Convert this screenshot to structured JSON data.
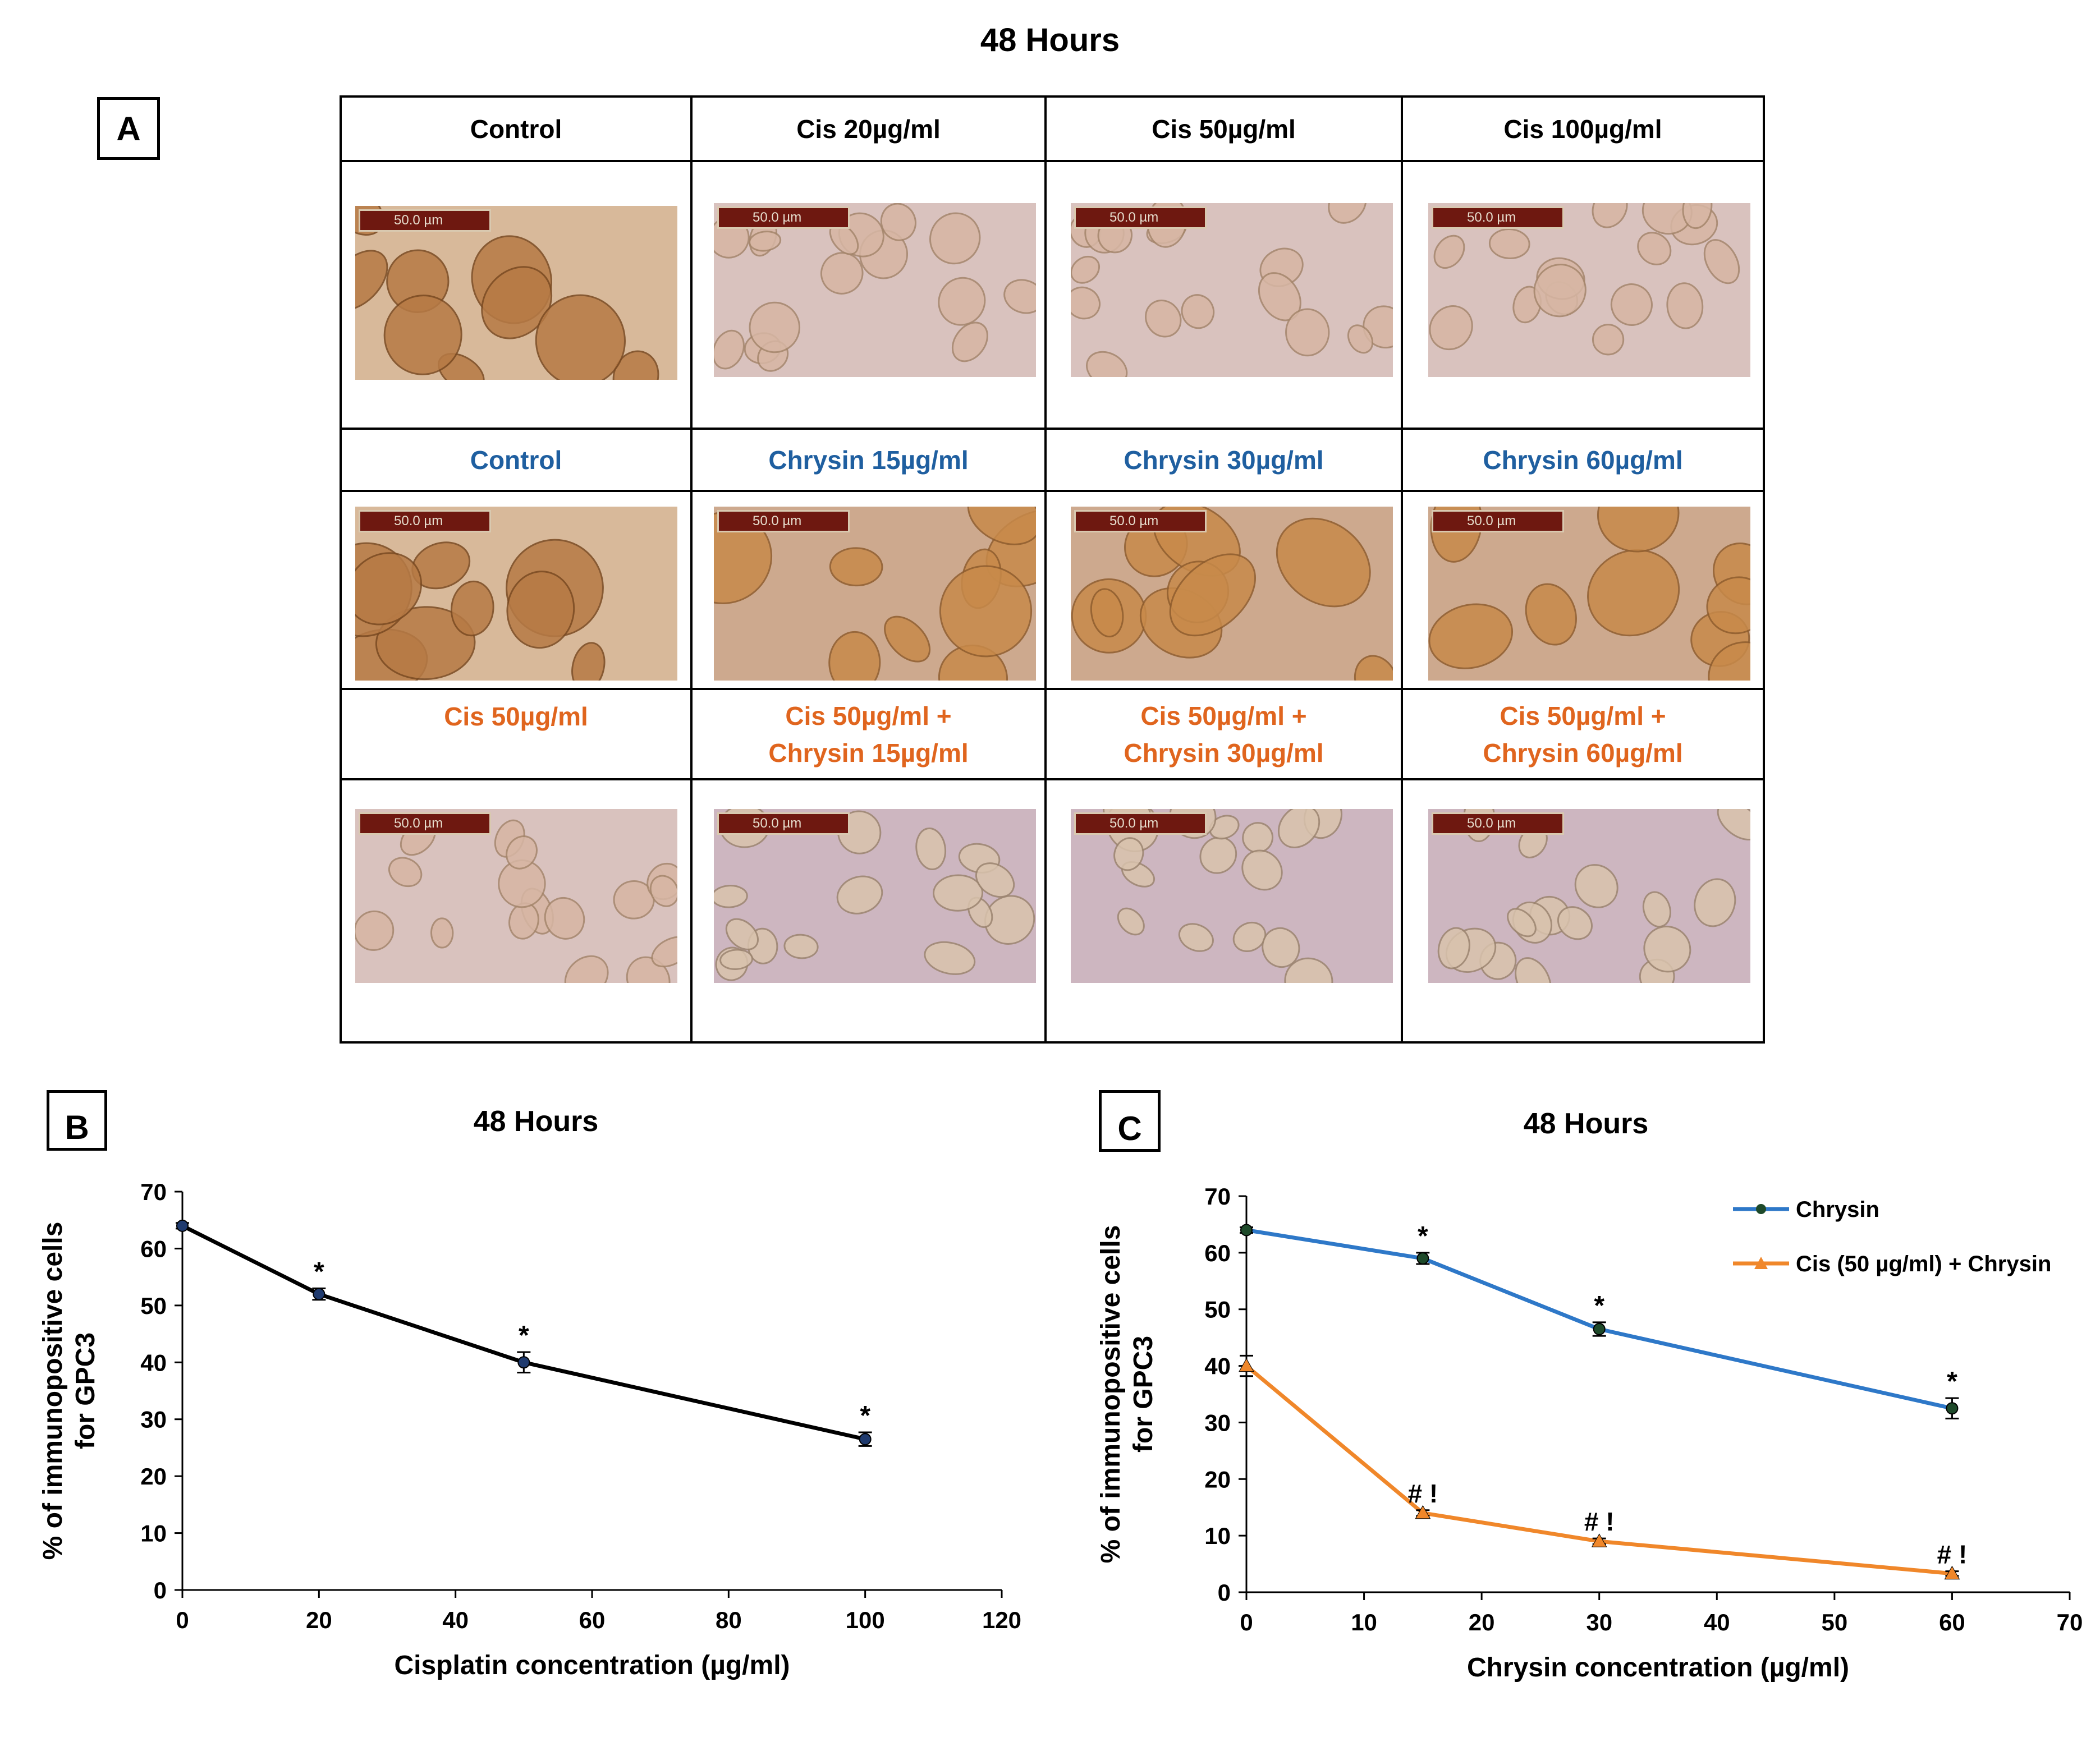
{
  "figure": {
    "main_title": "48 Hours",
    "panel_labels": {
      "a": "A",
      "b": "B",
      "c": "C"
    },
    "scale_bar_text": "50.0 µm",
    "grid": {
      "row1_headers": [
        "Control",
        "Cis 20µg/ml",
        "Cis 50µg/ml",
        "Cis 100µg/ml"
      ],
      "row2_headers": [
        "Control",
        "Chrysin 15µg/ml",
        "Chrysin 30µg/ml",
        "Chrysin 60µg/ml"
      ],
      "row3_headers": [
        "Cis 50µg/ml",
        "Cis 50µg/ml +\nChrysin 15µg/ml",
        "Cis 50µg/ml +\nChrysin 30µg/ml",
        "Cis 50µg/ml +\nChrysin 60µg/ml"
      ]
    }
  },
  "colors": {
    "row1_text": "#000000",
    "row2_text": "#1f5fa0",
    "row3_text": "#e0651e",
    "series_black": "#000000",
    "series_blue": "#2e78c8",
    "series_orange": "#f0872a"
  },
  "chart_data": [
    {
      "type": "line",
      "panel": "B",
      "title": "48 Hours",
      "xlabel": "Cisplatin concentration (µg/ml)",
      "ylabel": "% of immunopositive cells\nfor GPC3",
      "xlim": [
        0,
        120
      ],
      "ylim": [
        0,
        70
      ],
      "xticks": [
        0,
        20,
        40,
        60,
        80,
        100,
        120
      ],
      "yticks": [
        0,
        10,
        20,
        30,
        40,
        50,
        60,
        70
      ],
      "series": [
        {
          "name": "Cisplatin",
          "color": "#000000",
          "x": [
            0,
            20,
            50,
            100
          ],
          "y": [
            64,
            52,
            40,
            26.5
          ],
          "err": [
            0.5,
            1.0,
            1.8,
            1.2
          ],
          "labels": [
            "",
            "*",
            "*",
            "*"
          ]
        }
      ]
    },
    {
      "type": "line",
      "panel": "C",
      "title": "48 Hours",
      "xlabel": "Chrysin concentration (µg/ml)",
      "ylabel": "% of immunopositive cells\nfor GPC3",
      "xlim": [
        0,
        70
      ],
      "ylim": [
        0,
        70
      ],
      "xticks": [
        0,
        10,
        20,
        30,
        40,
        50,
        60,
        70
      ],
      "yticks": [
        0,
        10,
        20,
        30,
        40,
        50,
        60,
        70
      ],
      "legend": "top-right",
      "series": [
        {
          "name": "Chrysin",
          "color": "#2e78c8",
          "marker": "circle",
          "x": [
            0,
            15,
            30,
            60
          ],
          "y": [
            64,
            59,
            46.5,
            32.5
          ],
          "err": [
            0.5,
            1.0,
            1.2,
            1.8
          ],
          "labels": [
            "",
            "*",
            "*",
            "*"
          ]
        },
        {
          "name": "Cis (50 µg/ml) + Chrysin",
          "color": "#f0872a",
          "marker": "triangle",
          "x": [
            0,
            15,
            30,
            60
          ],
          "y": [
            40,
            14,
            9,
            3.3
          ],
          "err": [
            1.8,
            0.5,
            0.5,
            0.4
          ],
          "labels": [
            "",
            "#!",
            "#!",
            "#!"
          ]
        }
      ]
    }
  ]
}
